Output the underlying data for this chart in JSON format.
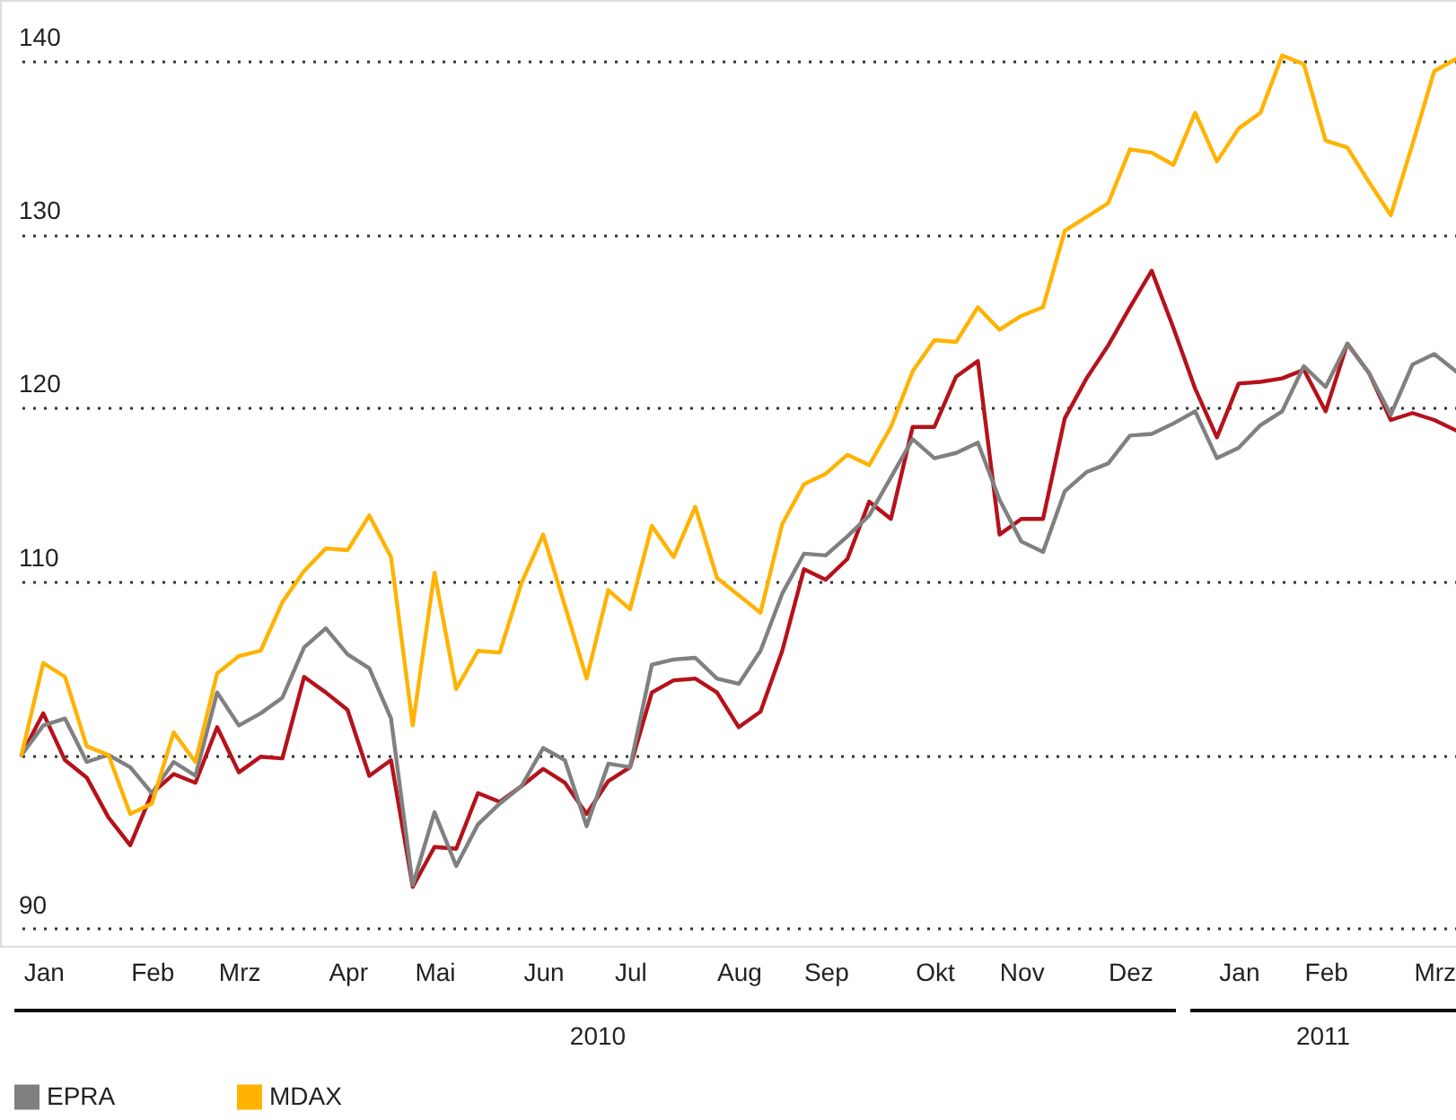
{
  "chart_data": {
    "type": "line",
    "categories": [
      null,
      "Jan",
      null,
      null,
      null,
      null,
      "Feb",
      null,
      null,
      null,
      "Mrz",
      null,
      null,
      null,
      null,
      "Apr",
      null,
      null,
      null,
      "Mai",
      null,
      null,
      null,
      null,
      "Jun",
      null,
      null,
      null,
      "Jul",
      null,
      null,
      null,
      null,
      "Aug",
      null,
      null,
      null,
      "Sep",
      null,
      null,
      null,
      null,
      "Okt",
      null,
      null,
      null,
      "Nov",
      null,
      null,
      null,
      null,
      "Dez",
      null,
      null,
      null,
      null,
      "Jan",
      null,
      null,
      null,
      "Feb",
      null,
      null,
      null,
      null,
      "Mrz",
      null
    ],
    "series": [
      {
        "color": "#b5121b",
        "values": [
          100,
          102.4,
          99.7,
          98.7,
          96.4,
          94.8,
          97.8,
          98.9,
          98.4,
          101.6,
          99.0,
          99.9,
          99.8,
          104.5,
          103.6,
          102.6,
          98.8,
          99.7,
          92.4,
          94.7,
          94.6,
          97.8,
          97.3,
          98.2,
          99.2,
          98.4,
          96.6,
          98.5,
          99.3,
          103.6,
          104.3,
          104.4,
          103.6,
          101.6,
          102.5,
          106.0,
          110.7,
          110.1,
          111.3,
          114.6,
          113.6,
          118.9,
          118.9,
          121.8,
          122.7,
          112.7,
          113.6,
          113.6,
          119.4,
          121.7,
          123.6,
          125.8,
          127.9,
          124.6,
          121.1,
          118.3,
          121.4,
          121.5,
          121.7,
          122.2,
          119.8,
          123.7,
          122.0,
          119.3,
          119.7,
          119.3,
          118.7
        ]
      },
      {
        "name": "EPRA",
        "color": "#808080",
        "values": [
          100,
          101.7,
          102.1,
          99.6,
          100,
          99.3,
          97.8,
          99.6,
          98.8,
          103.6,
          101.7,
          102.4,
          103.3,
          106.2,
          107.3,
          105.8,
          105.0,
          102.1,
          92.5,
          96.7,
          93.6,
          96.0,
          97.2,
          98.2,
          100.4,
          99.7,
          95.9,
          99.5,
          99.3,
          105.2,
          105.5,
          105.6,
          104.4,
          104.1,
          106.0,
          109.3,
          111.6,
          111.5,
          112.6,
          113.8,
          116.0,
          118.2,
          117.1,
          117.4,
          118.0,
          114.7,
          112.3,
          111.7,
          115.2,
          116.3,
          116.8,
          118.4,
          118.5,
          119.1,
          119.8,
          117.1,
          117.7,
          119.0,
          119.8,
          122.4,
          121.2,
          123.7,
          122.0,
          119.6,
          122.5,
          123.1,
          122.1
        ]
      },
      {
        "name": "MDAX",
        "color": "#ffb300",
        "values": [
          100,
          105.3,
          104.5,
          100.5,
          100,
          96.6,
          97.2,
          101.3,
          99.6,
          104.7,
          105.7,
          106.0,
          108.8,
          110.6,
          111.9,
          111.8,
          113.8,
          111.4,
          101.7,
          110.5,
          103.8,
          106.0,
          105.9,
          109.9,
          112.7,
          108.6,
          104.4,
          109.5,
          108.4,
          113.2,
          111.4,
          114.3,
          110.2,
          109.2,
          108.2,
          113.3,
          115.6,
          116.2,
          117.3,
          116.7,
          118.9,
          122.1,
          123.9,
          123.8,
          125.8,
          124.5,
          125.3,
          125.8,
          130.2,
          131.0,
          131.8,
          134.9,
          134.7,
          134.0,
          137.0,
          134.2,
          136.1,
          137.0,
          140.3,
          139.8,
          135.4,
          135.0,
          133.0,
          131.1,
          135.2,
          139.4,
          140.1
        ]
      }
    ],
    "ylim": [
      89,
      143.5
    ],
    "yticks": [
      90,
      {
        "value": 100,
        "label": null
      },
      110,
      120,
      130,
      140
    ],
    "grid": "y",
    "legend": "bottom left",
    "annotations": [
      "2010",
      "2011"
    ]
  }
}
